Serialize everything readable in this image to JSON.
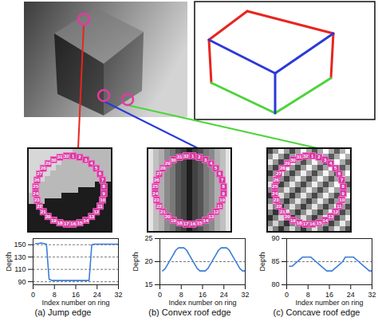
{
  "ring_labels": [
    1,
    2,
    3,
    4,
    5,
    6,
    7,
    8,
    9,
    10,
    11,
    12,
    13,
    14,
    15,
    16,
    17,
    18,
    19,
    20,
    21,
    22,
    23,
    24,
    25,
    26,
    27,
    28,
    29,
    30,
    31,
    32
  ],
  "chart_data": [
    {
      "type": "line",
      "title": "(a) Jump edge",
      "x_label": "Index number on ring",
      "y_label": "Depth",
      "x": [
        1,
        2,
        3,
        4,
        5,
        6,
        7,
        8,
        9,
        10,
        11,
        12,
        13,
        14,
        15,
        16,
        17,
        18,
        19,
        20,
        21,
        22,
        23,
        24,
        25,
        26,
        27,
        28,
        29,
        30,
        31,
        32
      ],
      "values": [
        152,
        152,
        153,
        152,
        151,
        94,
        92,
        92,
        92,
        92,
        92,
        92,
        92,
        92,
        92,
        92,
        92,
        92,
        92,
        92,
        92,
        150,
        151,
        151,
        151,
        151,
        151,
        151,
        151,
        151,
        151,
        151
      ],
      "xlim": [
        0,
        32
      ],
      "xticks": [
        0,
        8,
        16,
        24,
        32
      ],
      "ylim": [
        85,
        160
      ],
      "yticks": [
        90,
        110,
        130,
        150
      ],
      "grid": true,
      "color": "#3b7dd8"
    },
    {
      "type": "line",
      "title": "(b) Convex roof edge",
      "x_label": "Index number on ring",
      "y_label": "Depth",
      "x": [
        1,
        2,
        3,
        4,
        5,
        6,
        7,
        8,
        9,
        10,
        11,
        12,
        13,
        14,
        15,
        16,
        17,
        18,
        19,
        20,
        21,
        22,
        23,
        24,
        25,
        26,
        27,
        28,
        29,
        30,
        31,
        32
      ],
      "values": [
        18,
        18.5,
        19.5,
        20.5,
        21.5,
        22.5,
        23,
        23,
        23,
        22.5,
        21.5,
        20.5,
        19.5,
        18.5,
        18,
        18,
        18,
        18.5,
        19.5,
        20.5,
        21.5,
        22.5,
        23,
        23,
        23,
        22.5,
        21.5,
        20.5,
        19.5,
        18.5,
        18,
        18
      ],
      "xlim": [
        0,
        32
      ],
      "xticks": [
        0,
        8,
        16,
        24,
        32
      ],
      "ylim": [
        15,
        25
      ],
      "yticks": [
        15,
        20,
        25
      ],
      "grid": true,
      "color": "#3b7dd8"
    },
    {
      "type": "line",
      "title": "(c) Concave roof edge",
      "x_label": "Index number on ring",
      "y_label": "Depth",
      "x": [
        1,
        2,
        3,
        4,
        5,
        6,
        7,
        8,
        9,
        10,
        11,
        12,
        13,
        14,
        15,
        16,
        17,
        18,
        19,
        20,
        21,
        22,
        23,
        24,
        25,
        26,
        27,
        28,
        29,
        30,
        31,
        32
      ],
      "values": [
        84,
        84,
        84.5,
        85,
        85.5,
        86,
        86,
        86,
        86,
        85.5,
        85,
        84.5,
        84,
        83.5,
        83,
        83,
        83,
        83.5,
        84,
        84.5,
        85,
        86,
        86,
        86,
        86,
        85.5,
        85,
        84.5,
        84,
        83.5,
        83,
        83
      ],
      "xlim": [
        0,
        32
      ],
      "xticks": [
        0,
        8,
        16,
        24,
        32
      ],
      "ylim": [
        80,
        90
      ],
      "yticks": [
        80,
        85,
        90
      ],
      "grid": true,
      "color": "#3b7dd8"
    }
  ]
}
